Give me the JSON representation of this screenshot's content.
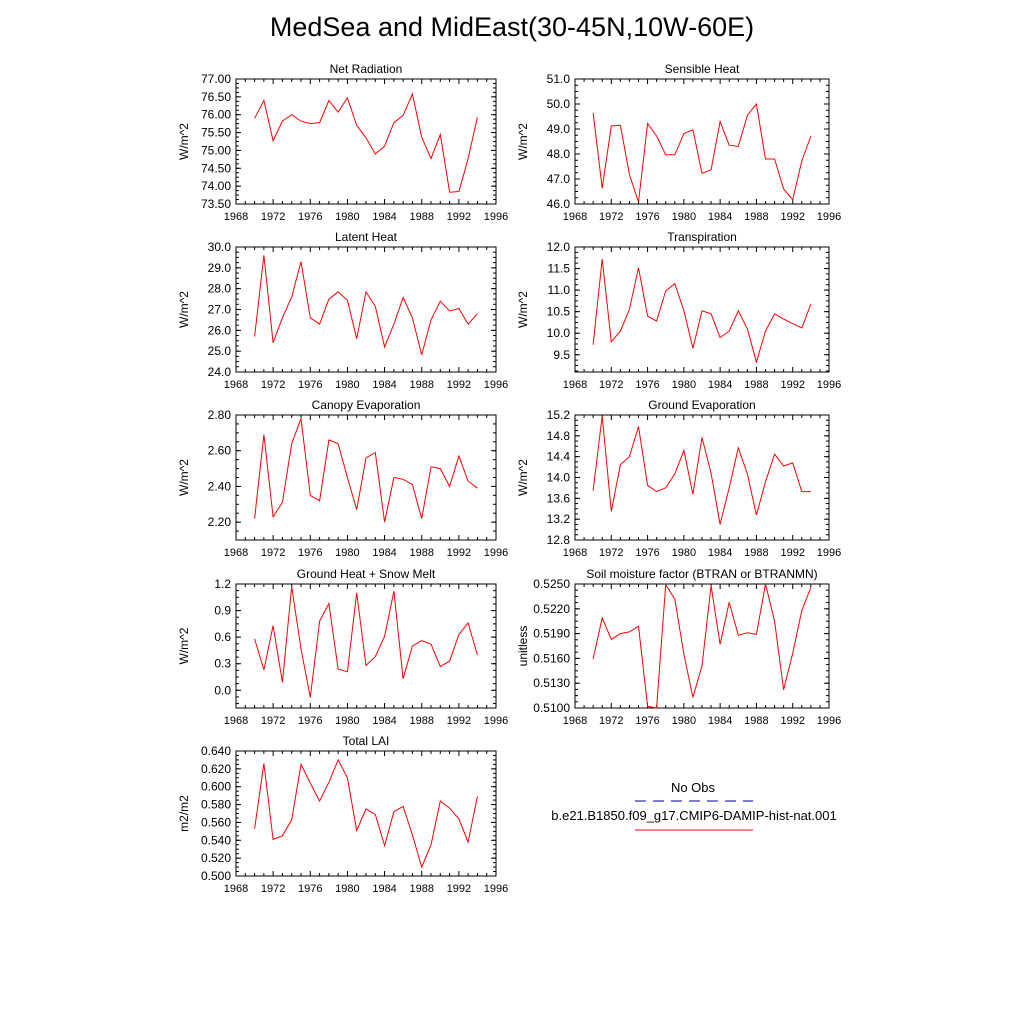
{
  "title": "MedSea and MidEast(30-45N,10W-60E)",
  "colors": {
    "model_line": "#ff0000",
    "obs_line": "#0000a0",
    "axis": "#000000"
  },
  "legend": {
    "obs_label": "No Obs",
    "model_label": "b.e21.B1850.f09_g17.CMIP6-DAMIP-hist-nat.001"
  },
  "chart_data": [
    {
      "type": "line",
      "title": "Net Radiation",
      "ylabel": "W/m^2",
      "xlim": [
        1968,
        1996
      ],
      "xticks": [
        1968,
        1972,
        1976,
        1980,
        1984,
        1988,
        1992,
        1996
      ],
      "ylim": [
        73.5,
        77.0
      ],
      "yticks": [
        "73.50",
        "74.00",
        "74.50",
        "75.00",
        "75.50",
        "76.00",
        "76.50",
        "77.00"
      ],
      "series": [
        {
          "x": [
            1970,
            1971,
            1972,
            1973,
            1974,
            1975,
            1976,
            1977,
            1978,
            1979,
            1980,
            1981,
            1982,
            1983,
            1984,
            1985,
            1986,
            1987,
            1988,
            1989,
            1990,
            1991,
            1992,
            1993,
            1994
          ],
          "values": [
            75.9,
            76.4,
            75.27,
            75.82,
            76.0,
            75.82,
            75.75,
            75.78,
            76.4,
            76.07,
            76.47,
            75.7,
            75.35,
            74.9,
            75.12,
            75.78,
            75.98,
            76.58,
            75.37,
            74.77,
            75.45,
            73.83,
            73.85,
            74.77,
            75.93
          ]
        }
      ]
    },
    {
      "type": "line",
      "title": "Sensible Heat",
      "ylabel": "W/m^2",
      "xlim": [
        1968,
        1996
      ],
      "xticks": [
        1968,
        1972,
        1976,
        1980,
        1984,
        1988,
        1992,
        1996
      ],
      "ylim": [
        46.0,
        51.0
      ],
      "yticks": [
        "46.0",
        "47.0",
        "48.0",
        "49.0",
        "50.0",
        "51.0"
      ],
      "series": [
        {
          "x": [
            1970,
            1971,
            1972,
            1973,
            1974,
            1975,
            1976,
            1977,
            1978,
            1979,
            1980,
            1981,
            1982,
            1983,
            1984,
            1985,
            1986,
            1987,
            1988,
            1989,
            1990,
            1991,
            1992,
            1993,
            1994
          ],
          "values": [
            49.65,
            46.63,
            49.12,
            49.15,
            47.18,
            46.08,
            49.22,
            48.72,
            47.97,
            47.97,
            48.82,
            48.97,
            47.23,
            47.37,
            49.3,
            48.35,
            48.3,
            49.55,
            50.0,
            47.8,
            47.8,
            46.6,
            46.17,
            47.72,
            48.72
          ]
        }
      ]
    },
    {
      "type": "line",
      "title": "Latent Heat",
      "ylabel": "W/m^2",
      "xlim": [
        1968,
        1996
      ],
      "xticks": [
        1968,
        1972,
        1976,
        1980,
        1984,
        1988,
        1992,
        1996
      ],
      "ylim": [
        24.0,
        30.0
      ],
      "yticks": [
        "24.0",
        "25.0",
        "26.0",
        "27.0",
        "28.0",
        "29.0",
        "30.0"
      ],
      "series": [
        {
          "x": [
            1970,
            1971,
            1972,
            1973,
            1974,
            1975,
            1976,
            1977,
            1978,
            1979,
            1980,
            1981,
            1982,
            1983,
            1984,
            1985,
            1986,
            1987,
            1988,
            1989,
            1990,
            1991,
            1992,
            1993,
            1994
          ],
          "values": [
            25.7,
            29.6,
            25.4,
            26.6,
            27.6,
            29.3,
            26.6,
            26.3,
            27.5,
            27.85,
            27.45,
            25.6,
            27.85,
            27.15,
            25.2,
            26.3,
            27.57,
            26.6,
            24.82,
            26.5,
            27.4,
            26.93,
            27.05,
            26.3,
            26.8
          ]
        }
      ]
    },
    {
      "type": "line",
      "title": "Transpiration",
      "ylabel": "W/m^2",
      "xlim": [
        1968,
        1996
      ],
      "xticks": [
        1968,
        1972,
        1976,
        1980,
        1984,
        1988,
        1992,
        1996
      ],
      "ylim": [
        9.1,
        12.0
      ],
      "yticks": [
        "9.5",
        "10.0",
        "10.5",
        "11.0",
        "11.5",
        "12.0"
      ],
      "series": [
        {
          "x": [
            1970,
            1971,
            1972,
            1973,
            1974,
            1975,
            1976,
            1977,
            1978,
            1979,
            1980,
            1981,
            1982,
            1983,
            1984,
            1985,
            1986,
            1987,
            1988,
            1989,
            1990,
            1991,
            1992,
            1993,
            1994
          ],
          "values": [
            9.73,
            11.72,
            9.8,
            10.05,
            10.55,
            11.52,
            10.4,
            10.28,
            10.98,
            11.15,
            10.52,
            9.65,
            10.52,
            10.45,
            9.9,
            10.05,
            10.52,
            10.1,
            9.33,
            10.05,
            10.45,
            10.33,
            10.22,
            10.12,
            10.68
          ]
        }
      ]
    },
    {
      "type": "line",
      "title": "Canopy Evaporation",
      "ylabel": "W/m^2",
      "xlim": [
        1968,
        1996
      ],
      "xticks": [
        1968,
        1972,
        1976,
        1980,
        1984,
        1988,
        1992,
        1996
      ],
      "ylim": [
        2.1,
        2.8
      ],
      "yticks": [
        "2.20",
        "2.40",
        "2.60",
        "2.80"
      ],
      "series": [
        {
          "x": [
            1970,
            1971,
            1972,
            1973,
            1974,
            1975,
            1976,
            1977,
            1978,
            1979,
            1980,
            1981,
            1982,
            1983,
            1984,
            1985,
            1986,
            1987,
            1988,
            1989,
            1990,
            1991,
            1992,
            1993,
            1994
          ],
          "values": [
            2.22,
            2.69,
            2.23,
            2.31,
            2.64,
            2.78,
            2.35,
            2.32,
            2.66,
            2.64,
            2.45,
            2.27,
            2.56,
            2.59,
            2.2,
            2.45,
            2.44,
            2.41,
            2.22,
            2.51,
            2.5,
            2.4,
            2.57,
            2.43,
            2.39
          ]
        }
      ]
    },
    {
      "type": "line",
      "title": "Ground Evaporation",
      "ylabel": "W/m^2",
      "xlim": [
        1968,
        1996
      ],
      "xticks": [
        1968,
        1972,
        1976,
        1980,
        1984,
        1988,
        1992,
        1996
      ],
      "ylim": [
        12.8,
        15.2
      ],
      "yticks": [
        "12.8",
        "13.2",
        "13.6",
        "14.0",
        "14.4",
        "14.8",
        "15.2"
      ],
      "series": [
        {
          "x": [
            1970,
            1971,
            1972,
            1973,
            1974,
            1975,
            1976,
            1977,
            1978,
            1979,
            1980,
            1981,
            1982,
            1983,
            1984,
            1985,
            1986,
            1987,
            1988,
            1989,
            1990,
            1991,
            1992,
            1993,
            1994
          ],
          "values": [
            13.75,
            15.18,
            13.35,
            14.25,
            14.4,
            14.98,
            13.85,
            13.73,
            13.8,
            14.07,
            14.52,
            13.68,
            14.77,
            14.08,
            13.1,
            13.8,
            14.57,
            14.07,
            13.28,
            13.92,
            14.45,
            14.22,
            14.28,
            13.73,
            13.73
          ]
        }
      ]
    },
    {
      "type": "line",
      "title": "Ground Heat + Snow Melt",
      "ylabel": "W/m^2",
      "xlim": [
        1968,
        1996
      ],
      "xticks": [
        1968,
        1972,
        1976,
        1980,
        1984,
        1988,
        1992,
        1996
      ],
      "ylim": [
        -0.2,
        1.2
      ],
      "yticks": [
        "0.0",
        "0.3",
        "0.6",
        "0.9",
        "1.2"
      ],
      "series": [
        {
          "x": [
            1970,
            1971,
            1972,
            1973,
            1974,
            1975,
            1976,
            1977,
            1978,
            1979,
            1980,
            1981,
            1982,
            1983,
            1984,
            1985,
            1986,
            1987,
            1988,
            1989,
            1990,
            1991,
            1992,
            1993,
            1994
          ],
          "values": [
            0.58,
            0.23,
            0.73,
            0.09,
            1.17,
            0.47,
            -0.08,
            0.78,
            0.98,
            0.24,
            0.21,
            1.1,
            0.28,
            0.38,
            0.61,
            1.12,
            0.13,
            0.5,
            0.56,
            0.52,
            0.27,
            0.33,
            0.63,
            0.76,
            0.4
          ]
        }
      ]
    },
    {
      "type": "line",
      "title": "Soil moisture factor (BTRAN or BTRANMN)",
      "ylabel": "unitless",
      "xlim": [
        1968,
        1996
      ],
      "xticks": [
        1968,
        1972,
        1976,
        1980,
        1984,
        1988,
        1992,
        1996
      ],
      "ylim": [
        0.51,
        0.525
      ],
      "yticks": [
        "0.5100",
        "0.5130",
        "0.5160",
        "0.5190",
        "0.5220",
        "0.5250"
      ],
      "series": [
        {
          "x": [
            1970,
            1971,
            1972,
            1973,
            1974,
            1975,
            1976,
            1977,
            1978,
            1979,
            1980,
            1981,
            1982,
            1983,
            1984,
            1985,
            1986,
            1987,
            1988,
            1989,
            1990,
            1991,
            1992,
            1993,
            1994
          ],
          "values": [
            0.5159,
            0.5209,
            0.5183,
            0.519,
            0.5192,
            0.5199,
            0.5102,
            0.51,
            0.5249,
            0.5232,
            0.5165,
            0.5113,
            0.5151,
            0.5248,
            0.5177,
            0.5228,
            0.5188,
            0.5191,
            0.5189,
            0.525,
            0.5205,
            0.5122,
            0.5166,
            0.5218,
            0.5246
          ]
        }
      ]
    },
    {
      "type": "line",
      "title": "Total LAI",
      "ylabel": "m2/m2",
      "xlim": [
        1968,
        1996
      ],
      "xticks": [
        1968,
        1972,
        1976,
        1980,
        1984,
        1988,
        1992,
        1996
      ],
      "ylim": [
        0.5,
        0.64
      ],
      "yticks": [
        "0.500",
        "0.520",
        "0.540",
        "0.560",
        "0.580",
        "0.600",
        "0.620",
        "0.640"
      ],
      "series": [
        {
          "x": [
            1970,
            1971,
            1972,
            1973,
            1974,
            1975,
            1976,
            1977,
            1978,
            1979,
            1980,
            1981,
            1982,
            1983,
            1984,
            1985,
            1986,
            1987,
            1988,
            1989,
            1990,
            1991,
            1992,
            1993,
            1994
          ],
          "values": [
            0.553,
            0.626,
            0.541,
            0.545,
            0.563,
            0.625,
            0.604,
            0.584,
            0.605,
            0.63,
            0.61,
            0.551,
            0.575,
            0.569,
            0.534,
            0.572,
            0.578,
            0.546,
            0.51,
            0.535,
            0.584,
            0.576,
            0.564,
            0.538,
            0.589
          ]
        }
      ]
    }
  ]
}
